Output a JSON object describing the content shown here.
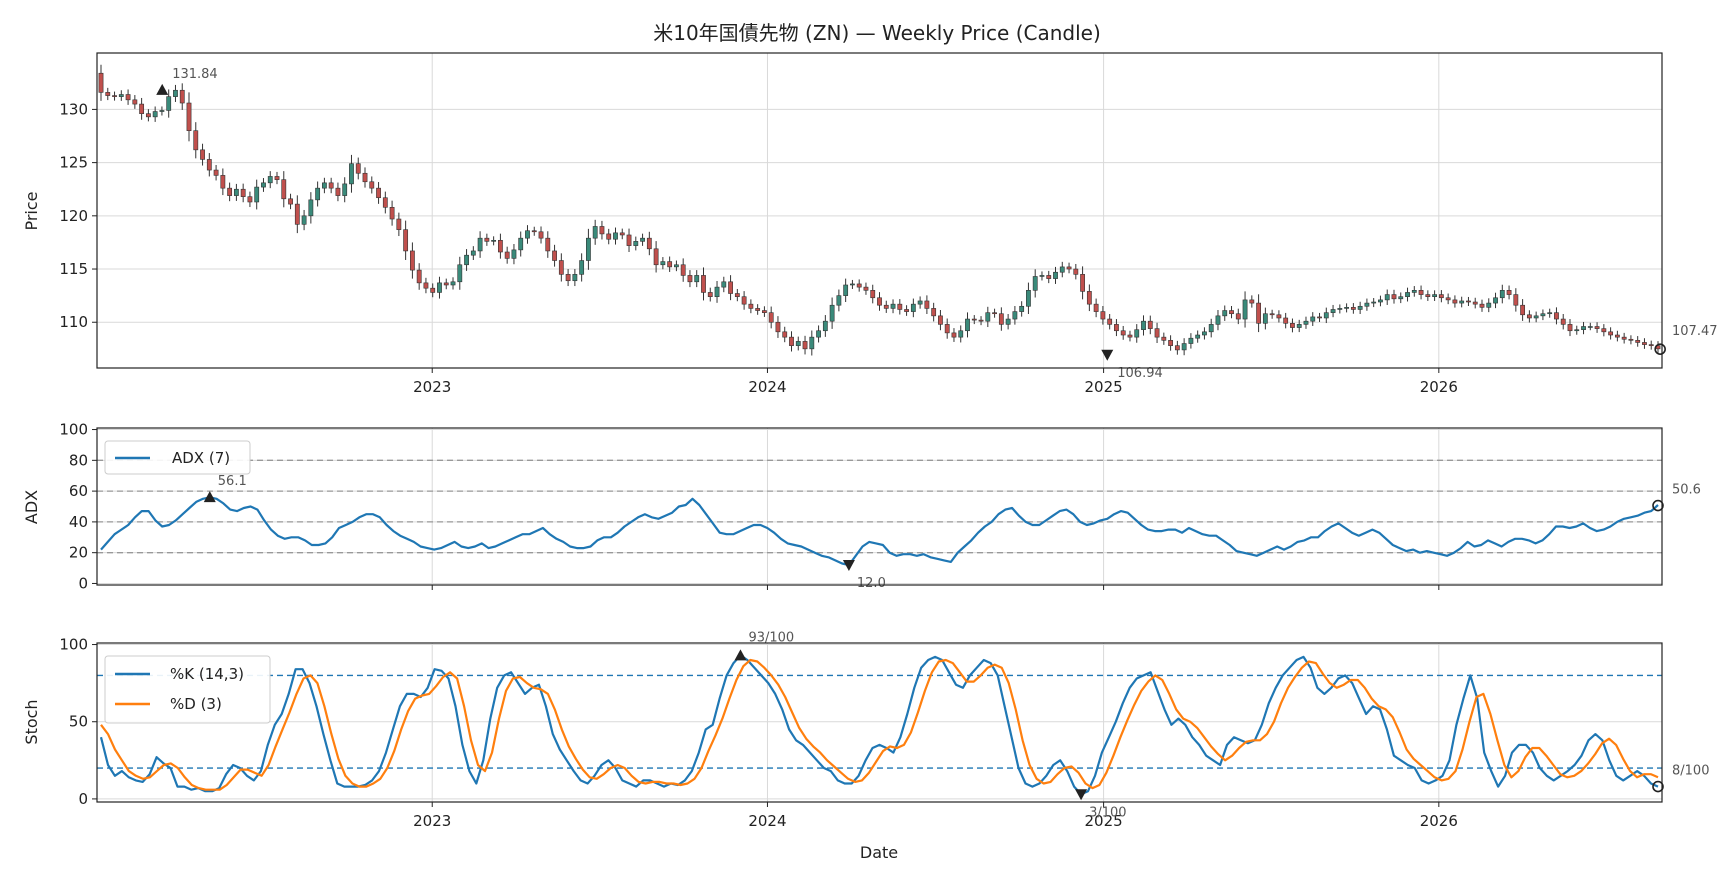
{
  "chart_data": {
    "type": "candlestick_with_indicators",
    "title": "米10年国債先物 (ZN) — Weekly Price (Candle)",
    "xlabel": "Date",
    "x_ticks": [
      "2023",
      "2024",
      "2025",
      "2026"
    ],
    "x_range": [
      "2022-01-01",
      "2026-09-01"
    ],
    "colors": {
      "up": "#3a8a7a",
      "down": "#c0504d",
      "adx": "#1f77b4",
      "k": "#1f77b4",
      "d": "#ff7f0e",
      "marker": "#222222",
      "ref": "#999999"
    },
    "price": {
      "ylabel": "Price",
      "ylim": [
        105.7,
        135.3
      ],
      "y_ticks": [
        110,
        115,
        120,
        125,
        130
      ],
      "weekly_close": [
        131.6,
        131.3,
        131.2,
        131.4,
        130.9,
        130.5,
        129.6,
        129.3,
        129.8,
        129.9,
        131.2,
        131.8,
        130.6,
        128.0,
        126.2,
        125.3,
        124.3,
        123.8,
        122.6,
        121.9,
        122.5,
        121.8,
        121.3,
        122.7,
        123.1,
        123.7,
        123.4,
        121.6,
        121.1,
        119.2,
        120.0,
        121.5,
        122.6,
        123.1,
        122.6,
        121.9,
        123.0,
        124.9,
        124.0,
        123.2,
        122.6,
        121.7,
        120.8,
        119.7,
        118.7,
        116.7,
        114.9,
        113.7,
        113.2,
        112.8,
        113.7,
        113.5,
        113.8,
        115.4,
        116.3,
        116.7,
        117.9,
        117.6,
        117.7,
        116.6,
        116.0,
        116.8,
        117.9,
        118.6,
        118.5,
        117.9,
        116.7,
        115.8,
        114.5,
        113.9,
        114.5,
        115.8,
        117.9,
        119.0,
        118.3,
        117.8,
        118.4,
        118.2,
        117.2,
        117.6,
        117.9,
        116.9,
        115.4,
        115.7,
        115.2,
        115.4,
        114.4,
        113.8,
        114.4,
        112.8,
        112.4,
        113.3,
        113.8,
        112.7,
        112.4,
        111.7,
        111.3,
        111.1,
        110.9,
        110.0,
        109.1,
        108.6,
        107.8,
        108.2,
        107.5,
        108.6,
        109.2,
        110.1,
        111.6,
        112.5,
        113.5,
        113.6,
        113.3,
        113.0,
        112.3,
        111.6,
        111.3,
        111.7,
        111.2,
        111.0,
        111.7,
        112.0,
        111.3,
        110.6,
        109.8,
        109.0,
        108.6,
        109.2,
        110.3,
        110.2,
        110.1,
        110.9,
        110.8,
        109.8,
        110.3,
        111.0,
        111.5,
        113.0,
        114.3,
        114.4,
        114.1,
        114.7,
        115.2,
        115.0,
        114.5,
        112.9,
        111.7,
        111.0,
        110.3,
        109.8,
        109.2,
        108.8,
        108.6,
        109.3,
        110.1,
        109.4,
        108.6,
        108.3,
        107.8,
        107.4,
        108.0,
        108.5,
        108.8,
        109.1,
        109.8,
        110.6,
        111.1,
        110.8,
        110.3,
        112.1,
        111.8,
        109.9,
        110.8,
        110.7,
        110.4,
        109.9,
        109.5,
        109.8,
        110.1,
        110.5,
        110.4,
        110.9,
        111.2,
        111.3,
        111.4,
        111.2,
        111.5,
        111.8,
        111.9,
        112.1,
        112.6,
        112.2,
        112.4,
        112.8,
        113.0,
        112.6,
        112.4,
        112.6,
        112.3,
        112.1,
        111.8,
        112.0,
        111.9,
        111.7,
        111.4,
        111.8,
        112.3,
        113.0,
        112.6,
        111.6,
        110.7,
        110.4,
        110.6,
        110.8,
        110.9,
        110.3,
        109.8,
        109.2,
        109.3,
        109.6,
        109.6,
        109.4,
        109.1,
        108.8,
        108.6,
        108.4,
        108.3,
        108.1,
        107.9,
        107.8,
        107.5
      ],
      "max_annotation": {
        "label": "131.84",
        "date": "2022-03-13",
        "value": 131.84
      },
      "min_annotation": {
        "label": "106.94",
        "date": "2025-01-05",
        "value": 106.94
      },
      "last_annotation": {
        "label": "107.47",
        "date": "2026-08-30",
        "value": 107.47
      }
    },
    "adx": {
      "ylabel": "ADX",
      "ylim": [
        -1,
        101
      ],
      "y_ticks": [
        0,
        20,
        40,
        60,
        80,
        100
      ],
      "ref_lines": [
        20,
        40,
        60,
        80
      ],
      "series": [
        {
          "name": "ADX (7)",
          "values": [
            22,
            27,
            32,
            35,
            38,
            43,
            47,
            47,
            41,
            37,
            38,
            41,
            45,
            49,
            53,
            55,
            56,
            55,
            52,
            48,
            47,
            49,
            50,
            48,
            41,
            35,
            31,
            29,
            30,
            30,
            28,
            25,
            25,
            26,
            30,
            36,
            38,
            40,
            43,
            45,
            45,
            43,
            38,
            34,
            31,
            29,
            27,
            24,
            23,
            22,
            23,
            25,
            27,
            24,
            23,
            24,
            26,
            23,
            24,
            26,
            28,
            30,
            32,
            32,
            34,
            36,
            32,
            29,
            27,
            24,
            23,
            23,
            24,
            28,
            30,
            30,
            33,
            37,
            40,
            43,
            45,
            43,
            42,
            44,
            46,
            50,
            51,
            55,
            51,
            45,
            39,
            33,
            32,
            32,
            34,
            36,
            38,
            38,
            36,
            33,
            29,
            26,
            25,
            24,
            22,
            20,
            18,
            17,
            15,
            13,
            12,
            18,
            24,
            27,
            26,
            25,
            20,
            18,
            19,
            19,
            18,
            19,
            17,
            16,
            15,
            14,
            20,
            24,
            28,
            33,
            37,
            40,
            45,
            48,
            49,
            44,
            40,
            38,
            38,
            41,
            44,
            47,
            48,
            45,
            40,
            38,
            39,
            41,
            42,
            45,
            47,
            46,
            42,
            38,
            35,
            34,
            34,
            35,
            35,
            33,
            36,
            34,
            32,
            31,
            31,
            28,
            25,
            21,
            20,
            19,
            18,
            20,
            22,
            24,
            22,
            24,
            27,
            28,
            30,
            30,
            34,
            37,
            39,
            36,
            33,
            31,
            33,
            35,
            33,
            29,
            25,
            23,
            21,
            22,
            20,
            21,
            20,
            19,
            18,
            20,
            23,
            27,
            24,
            25,
            28,
            26,
            24,
            27,
            29,
            29,
            28,
            26,
            28,
            32,
            37,
            37,
            36,
            37,
            39,
            36,
            34,
            35,
            37,
            40,
            42,
            43,
            44,
            46,
            47,
            51
          ]
        }
      ],
      "max_annotation": {
        "label": "56.1",
        "value": 56.1
      },
      "min_annotation": {
        "label": "12.0",
        "value": 12.0
      },
      "last_annotation": {
        "label": "50.6",
        "value": 50.6
      }
    },
    "stoch": {
      "ylabel": "Stoch",
      "ylim": [
        -2,
        101
      ],
      "y_ticks": [
        0,
        50,
        100
      ],
      "ref_lines": [
        20,
        80
      ],
      "series": [
        {
          "name": "%K (14,3)",
          "values": [
            40,
            22,
            15,
            18,
            14,
            12,
            11,
            16,
            27,
            23,
            20,
            8,
            8,
            6,
            7,
            5,
            5,
            7,
            16,
            22,
            20,
            15,
            12,
            18,
            35,
            48,
            55,
            68,
            84,
            84,
            75,
            60,
            42,
            25,
            10,
            8,
            8,
            8,
            9,
            12,
            18,
            30,
            45,
            60,
            68,
            68,
            66,
            72,
            84,
            83,
            78,
            60,
            35,
            18,
            10,
            25,
            52,
            72,
            80,
            82,
            75,
            68,
            72,
            74,
            60,
            42,
            32,
            25,
            18,
            12,
            10,
            15,
            22,
            25,
            20,
            12,
            10,
            8,
            12,
            12,
            10,
            8,
            10,
            9,
            12,
            18,
            30,
            45,
            48,
            65,
            80,
            88,
            93,
            90,
            85,
            80,
            75,
            68,
            58,
            45,
            38,
            35,
            30,
            25,
            20,
            18,
            12,
            10,
            10,
            15,
            25,
            33,
            35,
            33,
            30,
            40,
            55,
            72,
            85,
            90,
            92,
            90,
            82,
            74,
            72,
            80,
            85,
            90,
            88,
            80,
            60,
            40,
            20,
            10,
            8,
            10,
            15,
            22,
            25,
            18,
            8,
            3,
            5,
            15,
            30,
            40,
            50,
            62,
            72,
            78,
            80,
            82,
            70,
            58,
            48,
            52,
            48,
            40,
            35,
            28,
            25,
            22,
            35,
            40,
            38,
            36,
            38,
            48,
            62,
            72,
            80,
            85,
            90,
            92,
            85,
            72,
            68,
            72,
            78,
            80,
            75,
            65,
            55,
            60,
            58,
            45,
            28,
            25,
            22,
            20,
            12,
            10,
            12,
            15,
            25,
            48,
            65,
            80,
            65,
            30,
            18,
            8,
            15,
            30,
            35,
            35,
            30,
            20,
            15,
            12,
            15,
            18,
            22,
            28,
            38,
            42,
            38,
            25,
            15,
            12,
            15,
            18,
            15,
            10,
            8
          ]
        },
        {
          "name": "%D (3)",
          "values": [
            48,
            42,
            32,
            25,
            18,
            15,
            13,
            14,
            18,
            22,
            23,
            20,
            14,
            9,
            7,
            6,
            6,
            6,
            9,
            14,
            19,
            19,
            17,
            15,
            22,
            34,
            45,
            56,
            68,
            78,
            80,
            75,
            60,
            42,
            26,
            15,
            10,
            8,
            8,
            10,
            13,
            20,
            31,
            45,
            57,
            65,
            67,
            68,
            73,
            79,
            82,
            78,
            60,
            38,
            22,
            18,
            30,
            52,
            70,
            78,
            79,
            75,
            72,
            71,
            68,
            58,
            45,
            34,
            26,
            19,
            14,
            13,
            16,
            20,
            22,
            20,
            15,
            11,
            10,
            11,
            11,
            10,
            10,
            9,
            10,
            13,
            20,
            31,
            41,
            52,
            65,
            77,
            86,
            90,
            89,
            85,
            80,
            74,
            66,
            56,
            46,
            39,
            34,
            30,
            25,
            21,
            17,
            13,
            11,
            12,
            17,
            24,
            31,
            34,
            33,
            35,
            43,
            56,
            70,
            82,
            89,
            90,
            88,
            82,
            76,
            76,
            80,
            85,
            87,
            85,
            75,
            58,
            38,
            22,
            13,
            10,
            11,
            16,
            20,
            21,
            17,
            10,
            7,
            9,
            17,
            28,
            40,
            51,
            61,
            70,
            76,
            80,
            77,
            68,
            58,
            52,
            50,
            46,
            40,
            34,
            29,
            25,
            28,
            33,
            37,
            38,
            38,
            42,
            50,
            62,
            72,
            79,
            85,
            89,
            88,
            81,
            75,
            72,
            74,
            77,
            77,
            72,
            65,
            60,
            58,
            53,
            43,
            32,
            26,
            22,
            18,
            14,
            12,
            13,
            18,
            32,
            50,
            66,
            68,
            55,
            38,
            22,
            14,
            18,
            27,
            33,
            33,
            28,
            22,
            16,
            14,
            15,
            18,
            23,
            29,
            36,
            39,
            35,
            26,
            18,
            14,
            16,
            16,
            14
          ]
        }
      ],
      "max_annotation": {
        "label": "93/100",
        "value": 93
      },
      "min_annotation": {
        "label": "3/100",
        "value": 3
      },
      "last_annotation": {
        "label": "8/100",
        "value": 8
      }
    }
  }
}
